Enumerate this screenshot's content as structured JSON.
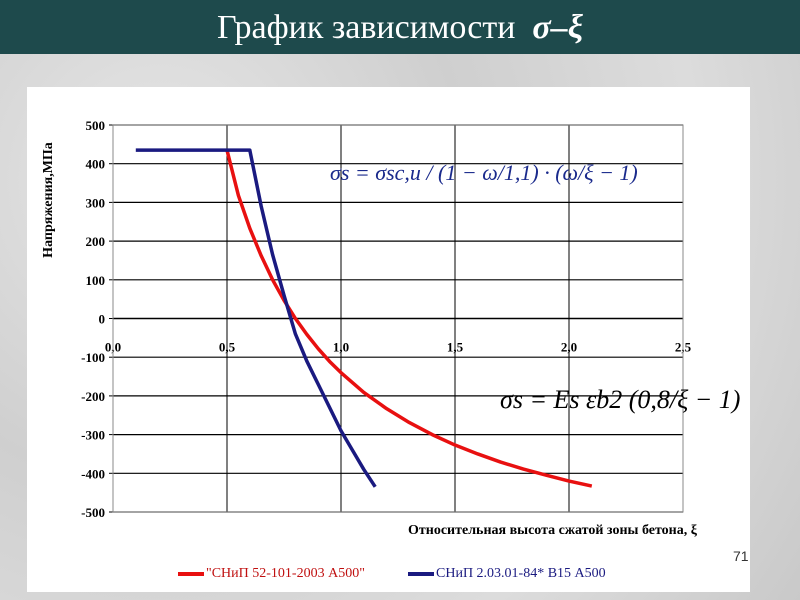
{
  "title": "График зависимости",
  "title_symbol": "σ–ξ",
  "slide_number": "71",
  "formulas": {
    "blue": "σs = σsc,u / (1 − ω/1,1) · (ω/ξ − 1)",
    "black": "σs = Es εb2 (0,8/ξ − 1)"
  },
  "chart_data": {
    "type": "line",
    "xlabel": "Относительная высота сжатой зоны бетона, ξ",
    "ylabel": "Напряжения,МПа",
    "xlim": [
      0,
      2.5
    ],
    "ylim": [
      -500,
      500
    ],
    "x_ticks": [
      "0,0",
      "0,5",
      "1,0",
      "1,5",
      "2,0",
      "2,5"
    ],
    "y_ticks": [
      "500",
      "400",
      "300",
      "200",
      "100",
      "0",
      "-100",
      "-200",
      "-300",
      "-400",
      "-500"
    ],
    "grid": true,
    "legend_position": "bottom",
    "series": [
      {
        "name": "\"СНиП 52-101-2003 А500\"",
        "color": "#e81010",
        "x": [
          0.5,
          0.55,
          0.6,
          0.65,
          0.7,
          0.75,
          0.8,
          0.85,
          0.9,
          0.95,
          1.0,
          1.1,
          1.2,
          1.3,
          1.4,
          1.5,
          1.6,
          1.7,
          1.8,
          1.9,
          2.0,
          2.1
        ],
        "y": [
          435,
          318,
          233,
          162,
          100,
          47,
          0,
          -41,
          -78,
          -111,
          -140,
          -191,
          -233,
          -269,
          -300,
          -327,
          -350,
          -371,
          -389,
          -405,
          -420,
          -433
        ]
      },
      {
        "name": "СНиП 2.03.01-84* В15 А500",
        "color": "#1a1a80",
        "x": [
          0.1,
          0.6,
          0.65,
          0.7,
          0.75,
          0.8,
          0.85,
          0.9,
          0.95,
          1.0,
          1.05,
          1.1,
          1.15
        ],
        "y": [
          435,
          435,
          290,
          165,
          60,
          -40,
          -110,
          -170,
          -230,
          -290,
          -340,
          -390,
          -435
        ]
      }
    ]
  }
}
